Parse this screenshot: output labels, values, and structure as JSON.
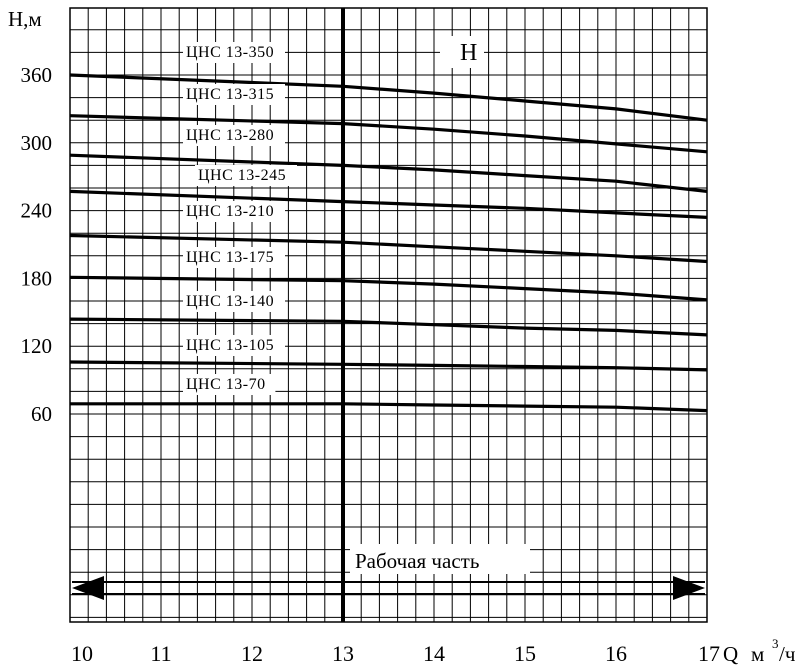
{
  "chart_data": {
    "type": "line",
    "ylabel": "H,м",
    "xlabel_q": "Q",
    "xlabel_unit": "м",
    "xlabel_exp": "3",
    "xlabel_tail": "/ч",
    "xlim": [
      10,
      17
    ],
    "ylim": [
      0,
      360
    ],
    "x_ticks": [
      "10",
      "11",
      "12",
      "13",
      "14",
      "15",
      "16",
      "17"
    ],
    "y_ticks": [
      {
        "value": 60,
        "label": "60"
      },
      {
        "value": 120,
        "label": "120"
      },
      {
        "value": 180,
        "label": "180"
      },
      {
        "value": 240,
        "label": "240"
      },
      {
        "value": 300,
        "label": "300"
      },
      {
        "value": 360,
        "label": "360"
      }
    ],
    "curve_title": "H",
    "nominal_q": 13,
    "working_range": {
      "from": 10,
      "to": 17,
      "label": "Рабочая часть"
    },
    "grid": true,
    "series": [
      {
        "name": "ЦНС 13-350",
        "x": [
          10,
          13,
          14,
          15,
          16,
          17
        ],
        "values": [
          360,
          350,
          344,
          337,
          330,
          320
        ]
      },
      {
        "name": "ЦНС 13-315",
        "x": [
          10,
          13,
          14,
          15,
          16,
          17
        ],
        "values": [
          324,
          317,
          312,
          306,
          299,
          292
        ]
      },
      {
        "name": "ЦНС 13-280",
        "x": [
          10,
          13,
          14,
          15,
          16,
          17
        ],
        "values": [
          289,
          280,
          276,
          271,
          266,
          257
        ]
      },
      {
        "name": "ЦНС 13-245",
        "x": [
          10,
          13,
          14,
          15,
          16,
          17
        ],
        "values": [
          257,
          248,
          245,
          242,
          238,
          234
        ]
      },
      {
        "name": "ЦНС 13-210",
        "x": [
          10,
          13,
          14,
          15,
          16,
          17
        ],
        "values": [
          218,
          212,
          208,
          204,
          200,
          195
        ]
      },
      {
        "name": "ЦНС 13-175",
        "x": [
          10,
          13,
          14,
          15,
          16,
          17
        ],
        "values": [
          181,
          178,
          175,
          171,
          167,
          161
        ]
      },
      {
        "name": "ЦНС 13-140",
        "x": [
          10,
          13,
          14,
          15,
          16,
          17
        ],
        "values": [
          144,
          142,
          139,
          136,
          134,
          130
        ]
      },
      {
        "name": "ЦНС 13-105",
        "x": [
          10,
          13,
          14,
          15,
          16,
          17
        ],
        "values": [
          106,
          104,
          103,
          102,
          101,
          99
        ]
      },
      {
        "name": "ЦНС 13-70",
        "x": [
          10,
          13,
          14,
          15,
          16,
          17
        ],
        "values": [
          69,
          69,
          68,
          67,
          66,
          63
        ]
      }
    ]
  }
}
